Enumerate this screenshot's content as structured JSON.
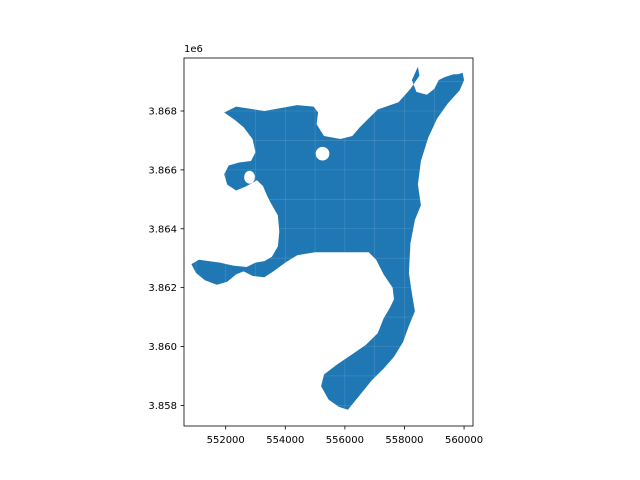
{
  "chart_data": {
    "type": "map",
    "title": "",
    "xlabel": "",
    "ylabel": "",
    "fill_color": "#1f77b4",
    "xlim": [
      550600,
      560300
    ],
    "ylim": [
      3857300,
      3869800
    ],
    "y_offset_text": "1e6",
    "x_ticks": [
      {
        "value": 552000,
        "label": "552000"
      },
      {
        "value": 554000,
        "label": "554000"
      },
      {
        "value": 556000,
        "label": "556000"
      },
      {
        "value": 558000,
        "label": "558000"
      },
      {
        "value": 560000,
        "label": "560000"
      }
    ],
    "y_ticks": [
      {
        "value": 3858000,
        "label": "3.858"
      },
      {
        "value": 3860000,
        "label": "3.860"
      },
      {
        "value": 3862000,
        "label": "3.862"
      },
      {
        "value": 3864000,
        "label": "3.864"
      },
      {
        "value": 3866000,
        "label": "3.866"
      },
      {
        "value": 3868000,
        "label": "3.868"
      }
    ],
    "region_outline": [
      [
        551950,
        3867950
      ],
      [
        552350,
        3868150
      ],
      [
        553300,
        3868000
      ],
      [
        554400,
        3868200
      ],
      [
        554950,
        3868150
      ],
      [
        555100,
        3867950
      ],
      [
        555050,
        3867550
      ],
      [
        555300,
        3867150
      ],
      [
        555850,
        3867050
      ],
      [
        556250,
        3867150
      ],
      [
        556500,
        3867450
      ],
      [
        556800,
        3867750
      ],
      [
        557100,
        3868050
      ],
      [
        557800,
        3868300
      ],
      [
        558200,
        3868750
      ],
      [
        558500,
        3869200
      ],
      [
        558450,
        3869500
      ],
      [
        558250,
        3869050
      ],
      [
        558400,
        3868650
      ],
      [
        558750,
        3868550
      ],
      [
        559000,
        3868750
      ],
      [
        559150,
        3869050
      ],
      [
        559350,
        3869150
      ],
      [
        559650,
        3869250
      ],
      [
        559800,
        3869250
      ],
      [
        559950,
        3869300
      ],
      [
        560000,
        3869050
      ],
      [
        559850,
        3868700
      ],
      [
        559450,
        3868250
      ],
      [
        559100,
        3867750
      ],
      [
        558800,
        3867100
      ],
      [
        558550,
        3866300
      ],
      [
        558450,
        3865500
      ],
      [
        558550,
        3864800
      ],
      [
        558350,
        3864300
      ],
      [
        558200,
        3863500
      ],
      [
        558150,
        3862500
      ],
      [
        558250,
        3861800
      ],
      [
        558350,
        3861200
      ],
      [
        558150,
        3860700
      ],
      [
        557950,
        3860150
      ],
      [
        557650,
        3859650
      ],
      [
        557300,
        3859250
      ],
      [
        556900,
        3858850
      ],
      [
        556500,
        3858350
      ],
      [
        556100,
        3857850
      ],
      [
        555800,
        3857950
      ],
      [
        555450,
        3858200
      ],
      [
        555200,
        3858650
      ],
      [
        555300,
        3859050
      ],
      [
        555750,
        3859400
      ],
      [
        556200,
        3859700
      ],
      [
        556700,
        3860050
      ],
      [
        557100,
        3860450
      ],
      [
        557300,
        3860950
      ],
      [
        557500,
        3861300
      ],
      [
        557650,
        3861600
      ],
      [
        557600,
        3862000
      ],
      [
        557300,
        3862450
      ],
      [
        557050,
        3862950
      ],
      [
        556800,
        3863200
      ],
      [
        556000,
        3863200
      ],
      [
        555000,
        3863200
      ],
      [
        554400,
        3863100
      ],
      [
        554000,
        3862850
      ],
      [
        553600,
        3862550
      ],
      [
        553300,
        3862350
      ],
      [
        552900,
        3862400
      ],
      [
        552600,
        3862550
      ],
      [
        552350,
        3862450
      ],
      [
        552050,
        3862200
      ],
      [
        551700,
        3862100
      ],
      [
        551300,
        3862250
      ],
      [
        551000,
        3862500
      ],
      [
        550850,
        3862800
      ],
      [
        551100,
        3862950
      ],
      [
        551800,
        3862850
      ],
      [
        552250,
        3862750
      ],
      [
        552700,
        3862700
      ],
      [
        553000,
        3862850
      ],
      [
        553300,
        3862900
      ],
      [
        553550,
        3863050
      ],
      [
        553750,
        3863400
      ],
      [
        553800,
        3863900
      ],
      [
        553750,
        3864450
      ],
      [
        553500,
        3864900
      ],
      [
        553400,
        3865100
      ],
      [
        553250,
        3865450
      ],
      [
        553050,
        3865650
      ],
      [
        552700,
        3865450
      ],
      [
        552350,
        3865300
      ],
      [
        552050,
        3865500
      ],
      [
        551950,
        3865850
      ],
      [
        552100,
        3866150
      ],
      [
        552450,
        3866250
      ],
      [
        552850,
        3866300
      ],
      [
        553000,
        3866600
      ],
      [
        552900,
        3867050
      ],
      [
        552600,
        3867450
      ],
      [
        552300,
        3867700
      ],
      [
        551950,
        3867950
      ]
    ],
    "holes": [
      {
        "cx": 555250,
        "cy": 3866550,
        "rx": 230,
        "ry": 230
      },
      {
        "cx": 552800,
        "cy": 3865750,
        "rx": 180,
        "ry": 220
      }
    ]
  }
}
